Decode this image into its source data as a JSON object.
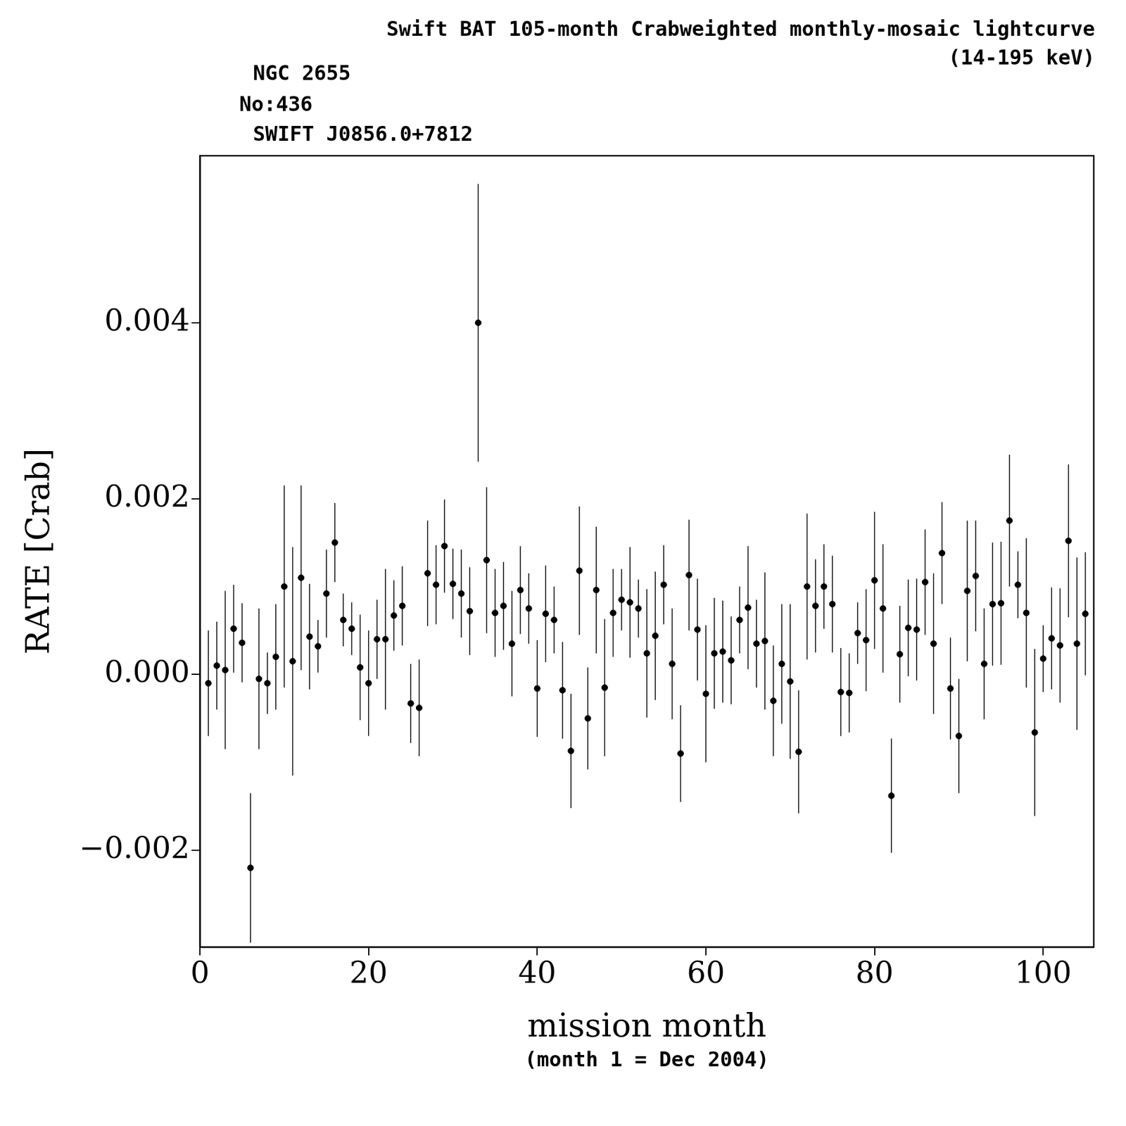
{
  "chart_data": {
    "type": "scatter",
    "title": "Swift BAT 105-month Crabweighted monthly-mosaic lightcurve",
    "subtitle": "(14-195 keV)",
    "annotations": [
      "NGC 2655",
      "No:436",
      "SWIFT J0856.0+7812"
    ],
    "x_label": "mission month",
    "x_sublabel": "(month 1 = Dec 2004)",
    "y_label": "RATE [Crab]",
    "color": "#000000",
    "marker": "circle",
    "grid": false,
    "xlim": [
      0,
      106
    ],
    "xticks": [
      0,
      20,
      40,
      60,
      80,
      100
    ],
    "ylim": [
      -0.0031,
      0.0059
    ],
    "yticks": [
      {
        "value": -0.002,
        "label": "−0.002"
      },
      {
        "value": 0,
        "label": "0.000"
      },
      {
        "value": 0.002,
        "label": "0.002"
      },
      {
        "value": 0.004,
        "label": "0.004"
      }
    ],
    "x": [
      1,
      2,
      3,
      4,
      5,
      6,
      7,
      8,
      9,
      10,
      11,
      12,
      13,
      14,
      15,
      16,
      17,
      18,
      19,
      20,
      21,
      22,
      23,
      24,
      25,
      26,
      27,
      28,
      29,
      30,
      31,
      32,
      33,
      34,
      35,
      36,
      37,
      38,
      39,
      40,
      41,
      42,
      43,
      44,
      45,
      46,
      47,
      48,
      49,
      50,
      51,
      52,
      53,
      54,
      55,
      56,
      57,
      58,
      59,
      60,
      61,
      62,
      63,
      64,
      65,
      66,
      67,
      68,
      69,
      70,
      71,
      72,
      73,
      74,
      75,
      76,
      77,
      78,
      79,
      80,
      81,
      82,
      83,
      84,
      85,
      86,
      87,
      88,
      89,
      90,
      91,
      92,
      93,
      94,
      95,
      96,
      97,
      98,
      99,
      100,
      101,
      102,
      103,
      104,
      105
    ],
    "values": [
      -0.0001,
      0.0001,
      5e-05,
      0.00052,
      0.00036,
      -0.0022,
      -5e-05,
      -0.0001,
      0.0002,
      0.001,
      0.00015,
      0.0011,
      0.00043,
      0.00032,
      0.00092,
      0.0015,
      0.00062,
      0.00052,
      8e-05,
      -0.0001,
      0.0004,
      0.0004,
      0.00067,
      0.00078,
      -0.00033,
      -0.00038,
      0.00115,
      0.00102,
      0.00146,
      0.00103,
      0.00092,
      0.00072,
      0.004,
      0.0013,
      0.0007,
      0.00078,
      0.00035,
      0.00096,
      0.00075,
      -0.00016,
      0.00069,
      0.00062,
      -0.00018,
      -0.00087,
      0.00118,
      -0.0005,
      0.00096,
      -0.00015,
      0.0007,
      0.00085,
      0.00082,
      0.00075,
      0.00024,
      0.00044,
      0.00102,
      0.00012,
      -0.0009,
      0.00113,
      0.00051,
      -0.00022,
      0.00024,
      0.00026,
      0.00016,
      0.00062,
      0.00076,
      0.00035,
      0.00038,
      -0.0003,
      0.00012,
      -8e-05,
      -0.00088,
      0.001,
      0.00078,
      0.001,
      0.0008,
      -0.0002,
      -0.00021,
      0.00047,
      0.00039,
      0.00107,
      0.00075,
      -0.00138,
      0.00023,
      0.00053,
      0.00051,
      0.00105,
      0.00035,
      0.00138,
      -0.00016,
      -0.0007,
      0.00095,
      0.00112,
      0.00012,
      0.0008,
      0.00081,
      0.00175,
      0.00102,
      0.0007,
      -0.00066,
      0.00018,
      0.00041,
      0.00033,
      0.00152,
      0.00035,
      0.00069
    ],
    "errors": [
      0.0006,
      0.0005,
      0.0009,
      0.0005,
      0.00045,
      0.00085,
      0.0008,
      0.00035,
      0.0006,
      0.00115,
      0.0013,
      0.00105,
      0.0006,
      0.0003,
      0.0005,
      0.00045,
      0.0003,
      0.0003,
      0.0006,
      0.0006,
      0.00045,
      0.0008,
      0.0004,
      0.00045,
      0.00045,
      0.00055,
      0.0006,
      0.00045,
      0.00053,
      0.0004,
      0.0005,
      0.0005,
      0.00158,
      0.00083,
      0.0005,
      0.0005,
      0.0006,
      0.0005,
      0.0004,
      0.00055,
      0.00055,
      0.00038,
      0.00055,
      0.00065,
      0.00073,
      0.00058,
      0.00072,
      0.00078,
      0.0005,
      0.00035,
      0.00063,
      0.00033,
      0.00073,
      0.00073,
      0.00045,
      0.00063,
      0.00055,
      0.00063,
      0.00058,
      0.00078,
      0.00063,
      0.00058,
      0.0005,
      0.00038,
      0.0007,
      0.0005,
      0.00078,
      0.00063,
      0.00068,
      0.00088,
      0.0007,
      0.00083,
      0.00053,
      0.00048,
      0.00055,
      0.0005,
      0.00045,
      0.00035,
      0.00058,
      0.00078,
      0.00073,
      0.00065,
      0.00055,
      0.00055,
      0.00058,
      0.0006,
      0.0008,
      0.00058,
      0.00058,
      0.00065,
      0.0008,
      0.00063,
      0.00063,
      0.0007,
      0.0007,
      0.00075,
      0.00038,
      0.00085,
      0.00095,
      0.00038,
      0.00058,
      0.00065,
      0.00087,
      0.00098,
      0.0007
    ]
  }
}
